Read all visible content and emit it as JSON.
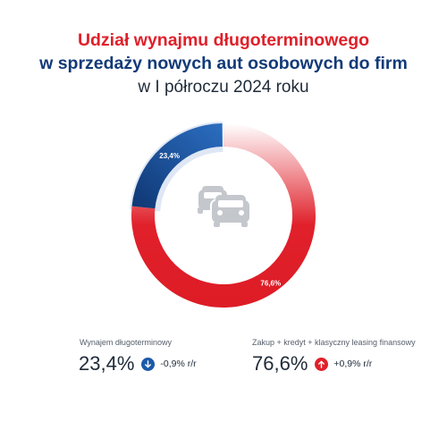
{
  "title": {
    "line1": "Udział wynajmu długoterminowego",
    "line2": "w sprzedaży nowych aut osobowych do firm",
    "line3": "w I półroczu 2024 roku"
  },
  "colors": {
    "red": "#e0202a",
    "blue": "#1b5aa8",
    "navy": "#123a78",
    "light_blue": "#dfe7f4",
    "icon_gray": "#c4c7cc"
  },
  "chart_data": {
    "type": "pie",
    "style": "donut",
    "center_icon": "cars-icon",
    "slices": [
      {
        "label": "Wynajem długoterminowy",
        "value": 23.4,
        "value_label": "23,4%",
        "color": "#1b5aa8"
      },
      {
        "label": "Zakup + kredyt + klasyczny leasing finansowy",
        "value": 76.6,
        "value_label": "76,6%",
        "color": "#e0202a"
      }
    ]
  },
  "stats": [
    {
      "label": "Wynajem długoterminowy",
      "value": "23,4%",
      "change": "-0,9% r/r",
      "direction": "down",
      "icon": "arrow-down-icon",
      "color": "#1b5aa8"
    },
    {
      "label": "Zakup + kredyt + klasyczny leasing finansowy",
      "value": "76,6%",
      "change": "+0,9% r/r",
      "direction": "up",
      "icon": "arrow-up-icon",
      "color": "#e0202a"
    }
  ]
}
